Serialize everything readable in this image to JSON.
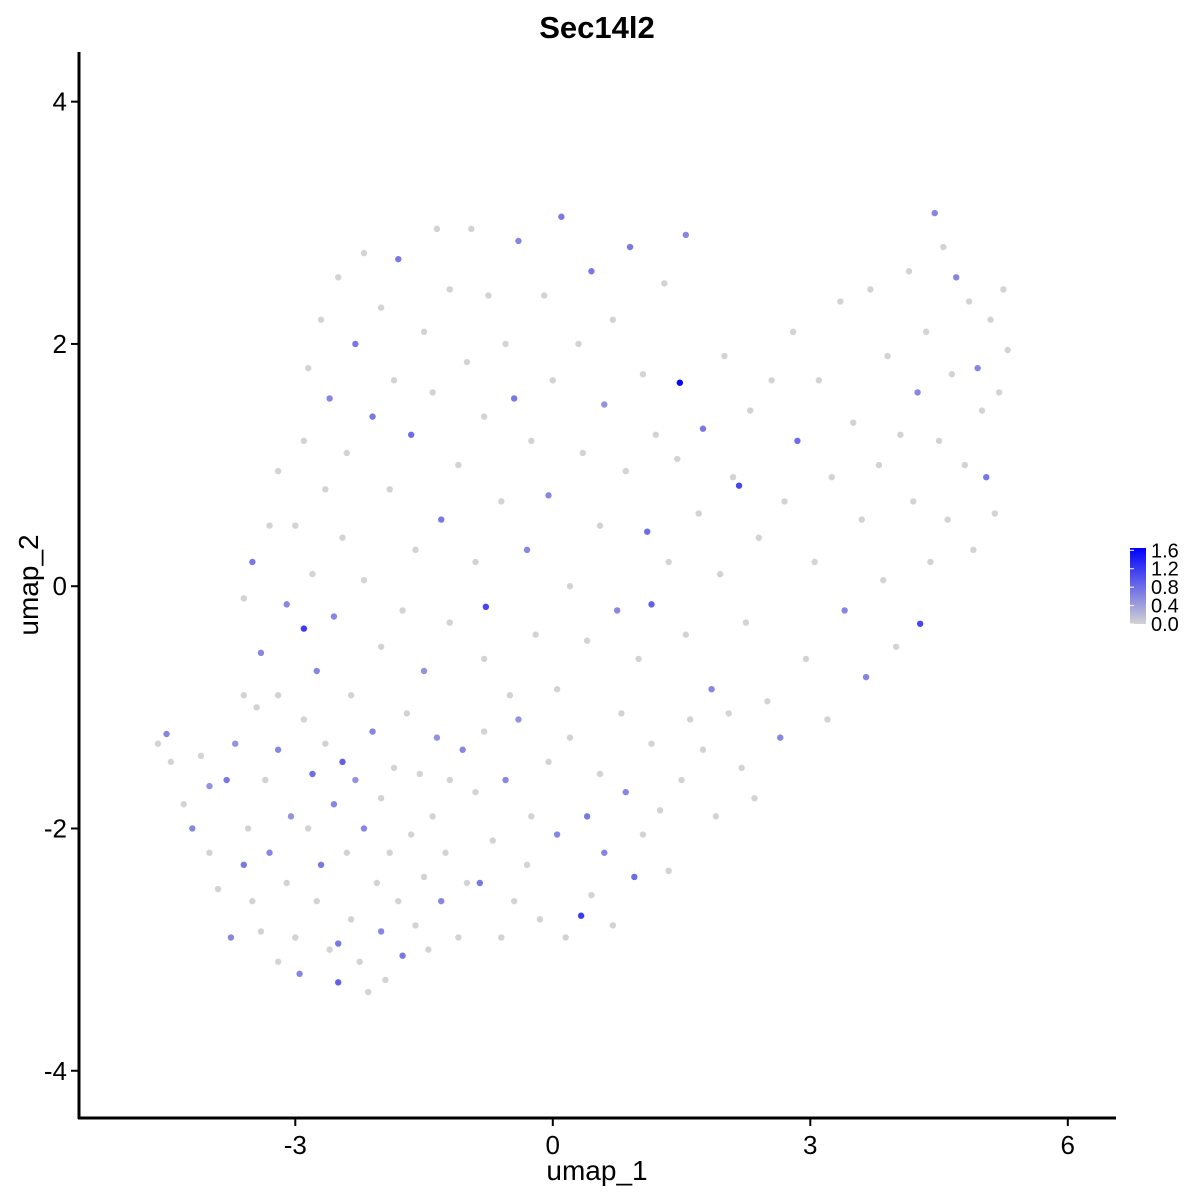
{
  "chart_data": {
    "type": "scatter",
    "title": "Sec14l2",
    "x_label": "umap_1",
    "y_label": "umap_2",
    "xlim": [
      -5.52,
      6.55
    ],
    "ylim": [
      -4.39,
      4.41
    ],
    "xticks": [
      -3,
      0,
      3,
      6
    ],
    "yticks": [
      -4,
      -2,
      0,
      2,
      4
    ],
    "low_color": "#d3d3d3",
    "high_color": "#0000ff",
    "colorlim": [
      0,
      1.65
    ],
    "colorticks": [
      {
        "value": 0,
        "label": "0.0"
      },
      0.4,
      0.8,
      1.2,
      1.6
    ],
    "x": [
      -4.6,
      -4.5,
      -4.45,
      -4.3,
      -4.2,
      -4.1,
      -4.0,
      -4.0,
      -3.9,
      -3.8,
      -3.75,
      -3.7,
      -3.6,
      -3.55,
      -3.5,
      -3.45,
      -3.4,
      -3.35,
      -3.3,
      -3.2,
      -3.2,
      -3.1,
      -3.05,
      -3.0,
      -2.95,
      -2.9,
      -2.85,
      -2.8,
      -2.75,
      -2.7,
      -2.65,
      -2.6,
      -2.55,
      -2.5,
      -2.5,
      -2.45,
      -2.4,
      -2.35,
      -2.3,
      -2.25,
      -2.2,
      -2.15,
      -2.1,
      -2.05,
      -2.0,
      -2.0,
      -1.95,
      -1.9,
      -1.85,
      -1.8,
      -1.75,
      -1.7,
      -1.65,
      -1.6,
      -1.55,
      -1.5,
      -1.45,
      -1.4,
      -1.35,
      -1.3,
      -1.25,
      -1.2,
      -1.1,
      -1.05,
      -1.0,
      -0.9,
      -0.85,
      -0.8,
      -0.7,
      -0.6,
      -0.55,
      -0.45,
      -0.4,
      -0.3,
      -0.25,
      -0.15,
      -0.05,
      0.05,
      0.15,
      0.2,
      0.33,
      0.4,
      0.45,
      0.55,
      0.6,
      0.7,
      0.8,
      0.85,
      0.95,
      1.05,
      1.15,
      1.25,
      1.35,
      1.5,
      1.6,
      1.75,
      1.9,
      2.05,
      2.2,
      2.35,
      -3.6,
      -3.6,
      -3.5,
      -3.4,
      -3.3,
      -3.2,
      -3.2,
      -3.1,
      -3.0,
      -2.9,
      -2.9,
      -2.85,
      -2.8,
      -2.75,
      -2.7,
      -2.65,
      -2.6,
      -2.55,
      -2.5,
      -2.45,
      -2.4,
      -2.35,
      -2.3,
      -2.2,
      -2.2,
      -2.1,
      -2.0,
      -2.0,
      -1.9,
      -1.85,
      -1.8,
      -1.75,
      -1.65,
      -1.6,
      -1.5,
      -1.5,
      -1.4,
      -1.35,
      -1.3,
      -1.2,
      -1.2,
      -1.1,
      -1.0,
      -0.95,
      -0.9,
      -0.8,
      -0.8,
      -0.75,
      -0.78,
      -0.6,
      -0.55,
      -0.5,
      -0.45,
      -0.4,
      -0.3,
      -0.25,
      -0.2,
      -0.1,
      -0.05,
      0.0,
      0.05,
      0.1,
      0.2,
      0.3,
      0.35,
      0.4,
      0.45,
      0.55,
      0.6,
      0.7,
      0.75,
      0.85,
      0.9,
      1.0,
      1.05,
      1.1,
      1.15,
      1.2,
      1.3,
      1.35,
      1.45,
      1.48,
      1.55,
      1.55,
      1.7,
      1.75,
      1.85,
      1.95,
      2.0,
      2.1,
      2.17,
      2.25,
      2.3,
      2.4,
      2.5,
      2.55,
      2.65,
      2.7,
      2.8,
      2.85,
      2.95,
      3.05,
      3.1,
      3.2,
      3.25,
      3.35,
      3.4,
      3.5,
      3.6,
      3.65,
      3.7,
      3.8,
      3.85,
      3.9,
      4.0,
      4.05,
      4.15,
      4.2,
      4.25,
      4.28,
      4.35,
      4.4,
      4.45,
      4.5,
      4.55,
      4.6,
      4.65,
      4.7,
      4.8,
      4.85,
      4.9,
      4.95,
      5.0,
      5.05,
      5.1,
      5.15,
      5.2,
      5.25,
      5.3
    ],
    "y": [
      -1.3,
      -1.22,
      -1.45,
      -1.8,
      -2.0,
      -1.4,
      -1.65,
      -2.2,
      -2.5,
      -1.6,
      -2.9,
      -1.3,
      -2.3,
      -2.0,
      -2.6,
      -1.0,
      -2.85,
      -1.6,
      -2.2,
      -1.35,
      -3.1,
      -2.45,
      -1.9,
      -2.9,
      -3.2,
      -1.1,
      -2.0,
      -1.55,
      -2.6,
      -2.3,
      -1.3,
      -3.0,
      -1.8,
      -2.95,
      -3.27,
      -1.45,
      -2.2,
      -2.75,
      -1.6,
      -3.1,
      -2.0,
      -3.35,
      -1.2,
      -2.45,
      -2.85,
      -1.75,
      -3.25,
      -2.2,
      -1.5,
      -2.6,
      -3.05,
      -1.05,
      -2.05,
      -2.8,
      -1.55,
      -2.4,
      -3.0,
      -1.9,
      -1.25,
      -2.6,
      -2.2,
      -1.6,
      -2.9,
      -1.35,
      -2.45,
      -1.7,
      -2.45,
      -1.2,
      -2.1,
      -2.9,
      -1.6,
      -2.6,
      -1.1,
      -2.3,
      -1.9,
      -2.75,
      -1.45,
      -2.05,
      -2.9,
      -1.25,
      -2.72,
      -1.9,
      -2.55,
      -1.55,
      -2.2,
      -2.8,
      -1.05,
      -1.7,
      -2.4,
      -2.05,
      -1.3,
      -1.85,
      -2.35,
      -1.6,
      -1.1,
      -1.35,
      -1.9,
      -1.05,
      -1.5,
      -1.75,
      -0.9,
      -0.1,
      0.2,
      -0.55,
      0.5,
      -0.9,
      0.95,
      -0.15,
      0.5,
      -0.35,
      1.2,
      1.8,
      0.1,
      -0.7,
      2.2,
      0.8,
      1.55,
      -0.25,
      2.55,
      0.4,
      1.1,
      -0.9,
      2.0,
      0.05,
      2.75,
      1.4,
      -0.5,
      2.3,
      0.8,
      1.7,
      2.7,
      -0.2,
      1.25,
      0.3,
      2.1,
      -0.7,
      1.6,
      2.95,
      0.55,
      -0.3,
      2.45,
      1.0,
      1.85,
      2.95,
      0.2,
      -0.6,
      1.4,
      2.4,
      -0.17,
      0.7,
      2.0,
      -0.9,
      1.55,
      2.85,
      0.3,
      1.2,
      -0.4,
      2.4,
      0.75,
      1.7,
      -0.85,
      3.05,
      0.0,
      2.0,
      1.1,
      -0.45,
      2.6,
      0.5,
      1.5,
      2.2,
      -0.2,
      0.95,
      2.8,
      -0.6,
      1.75,
      0.45,
      -0.15,
      1.25,
      2.5,
      0.2,
      1.05,
      1.68,
      -0.4,
      2.9,
      0.6,
      1.3,
      -0.85,
      0.1,
      1.9,
      0.9,
      0.83,
      -0.3,
      1.45,
      0.4,
      -0.95,
      1.7,
      -1.25,
      0.7,
      2.1,
      1.2,
      -0.6,
      0.2,
      1.7,
      -1.1,
      0.9,
      2.35,
      -0.2,
      1.35,
      0.55,
      -0.75,
      2.45,
      1.0,
      0.05,
      1.9,
      -0.5,
      1.25,
      2.6,
      0.7,
      1.6,
      -0.31,
      2.1,
      0.2,
      3.08,
      1.2,
      2.8,
      0.55,
      1.75,
      2.55,
      1.0,
      2.35,
      0.3,
      1.8,
      1.45,
      0.9,
      2.2,
      0.6,
      1.6,
      2.45,
      1.95
    ],
    "values": [
      0,
      0.6,
      0,
      0,
      0.6,
      0,
      0.5,
      0,
      0,
      0.7,
      0.6,
      0.5,
      0.7,
      0,
      0,
      0,
      0,
      0,
      0.6,
      0.6,
      0,
      0,
      0.5,
      0,
      0.6,
      0,
      0,
      0.8,
      0,
      0.7,
      0,
      0,
      0.6,
      0.7,
      0.9,
      0.9,
      0,
      0,
      0.5,
      0,
      0.6,
      0,
      0.6,
      0,
      0.6,
      0,
      0,
      0,
      0,
      0,
      0.7,
      0,
      0,
      0,
      0,
      0,
      0,
      0,
      0.5,
      0.6,
      0,
      0,
      0,
      0.6,
      0,
      0,
      0.7,
      0,
      0,
      0,
      0.6,
      0,
      0.5,
      0,
      0,
      0,
      0,
      0.6,
      0,
      0,
      1.2,
      0.7,
      0,
      0,
      0.6,
      0,
      0,
      0.6,
      0.8,
      0,
      0,
      0,
      0,
      0,
      0,
      0,
      0,
      0,
      0,
      0,
      0,
      0,
      0.7,
      0.6,
      0,
      0,
      0,
      0.6,
      0,
      1.2,
      0,
      0,
      0,
      0.6,
      0,
      0,
      0.6,
      0.6,
      0,
      0,
      0,
      0,
      0.7,
      0,
      0,
      0.7,
      0,
      0,
      0,
      0,
      0.7,
      0,
      0.8,
      0,
      0,
      0.5,
      0,
      0,
      0.7,
      0,
      0,
      0,
      0,
      0,
      0,
      0,
      0,
      0,
      1.1,
      0,
      0,
      0,
      0.7,
      0.6,
      0.6,
      0,
      0,
      0,
      0.6,
      0,
      0,
      0.7,
      0,
      0,
      0,
      0,
      0.7,
      0,
      0.5,
      0,
      0.6,
      0,
      0.7,
      0,
      0,
      0.8,
      0.9,
      0,
      0,
      0,
      0,
      1.6,
      0,
      0.6,
      0,
      0.7,
      0.6,
      0,
      0,
      0,
      1.1,
      0,
      0,
      0,
      0,
      0,
      0.6,
      0,
      0,
      0.8,
      0,
      0,
      0,
      0,
      0,
      0,
      0.6,
      0,
      0,
      0.6,
      0,
      0,
      0,
      0,
      0,
      0,
      0,
      0,
      0.6,
      1.1,
      0,
      0,
      0.6,
      0,
      0,
      0,
      0,
      0.6,
      0,
      0,
      0,
      0.6,
      0,
      0.7,
      0,
      0,
      0,
      0,
      0
    ]
  }
}
